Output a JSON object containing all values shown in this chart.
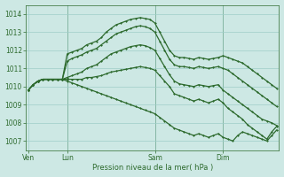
{
  "background_color": "#cde8e4",
  "grid_color": "#9ecdc8",
  "line_color": "#2d6a2d",
  "title": "Pression niveau de la mer( hPa )",
  "xlabel_ticks": [
    "Ven",
    "Lun",
    "Sam",
    "Dim"
  ],
  "xlabel_tick_positions": [
    0,
    8,
    26,
    40
  ],
  "total_points": 52,
  "ylim": [
    1006.5,
    1014.5
  ],
  "yticks": [
    1007,
    1008,
    1009,
    1010,
    1011,
    1012,
    1013,
    1014
  ],
  "lines": [
    {
      "x": [
        0,
        1,
        2,
        3,
        4,
        5,
        6,
        7,
        8,
        9,
        10,
        11,
        12,
        13,
        14,
        15,
        16,
        17,
        18,
        19,
        20,
        21,
        22,
        23,
        24,
        25,
        26,
        27,
        28,
        29,
        30,
        31,
        32,
        33,
        34,
        35,
        36,
        37,
        38,
        39,
        40,
        41,
        42,
        43,
        44,
        45,
        46,
        47,
        48,
        49,
        50,
        51
      ],
      "y": [
        1009.8,
        1010.1,
        1010.3,
        1010.4,
        1010.4,
        1010.4,
        1010.4,
        1010.4,
        1011.8,
        1011.9,
        1012.0,
        1012.1,
        1012.3,
        1012.4,
        1012.5,
        1012.7,
        1013.0,
        1013.2,
        1013.4,
        1013.5,
        1013.6,
        1013.7,
        1013.75,
        1013.8,
        1013.75,
        1013.7,
        1013.5,
        1013.0,
        1012.5,
        1012.0,
        1011.7,
        1011.6,
        1011.6,
        1011.55,
        1011.5,
        1011.6,
        1011.55,
        1011.5,
        1011.55,
        1011.6,
        1011.7,
        1011.6,
        1011.5,
        1011.4,
        1011.3,
        1011.1,
        1010.9,
        1010.7,
        1010.5,
        1010.3,
        1010.1,
        1009.9
      ]
    },
    {
      "x": [
        0,
        1,
        2,
        3,
        4,
        5,
        6,
        7,
        8,
        9,
        10,
        11,
        12,
        13,
        14,
        15,
        16,
        17,
        18,
        19,
        20,
        21,
        22,
        23,
        24,
        25,
        26,
        27,
        28,
        29,
        30,
        31,
        32,
        33,
        34,
        35,
        36,
        37,
        38,
        39,
        40,
        41,
        42,
        43,
        44,
        45,
        46,
        47,
        48,
        49,
        50,
        51
      ],
      "y": [
        1009.8,
        1010.1,
        1010.3,
        1010.4,
        1010.4,
        1010.4,
        1010.4,
        1010.4,
        1011.4,
        1011.55,
        1011.65,
        1011.75,
        1011.9,
        1012.0,
        1012.1,
        1012.3,
        1012.5,
        1012.7,
        1012.9,
        1013.0,
        1013.1,
        1013.2,
        1013.3,
        1013.35,
        1013.3,
        1013.2,
        1013.0,
        1012.5,
        1012.0,
        1011.5,
        1011.2,
        1011.1,
        1011.1,
        1011.05,
        1011.0,
        1011.1,
        1011.05,
        1011.0,
        1011.05,
        1011.1,
        1011.0,
        1010.9,
        1010.7,
        1010.5,
        1010.3,
        1010.1,
        1009.9,
        1009.7,
        1009.5,
        1009.3,
        1009.1,
        1008.9
      ]
    },
    {
      "x": [
        0,
        1,
        2,
        3,
        4,
        5,
        6,
        7,
        8,
        9,
        10,
        11,
        12,
        13,
        14,
        15,
        16,
        17,
        18,
        19,
        20,
        21,
        22,
        23,
        24,
        25,
        26,
        27,
        28,
        29,
        30,
        31,
        32,
        33,
        34,
        35,
        36,
        37,
        38,
        39,
        40,
        41,
        42,
        43,
        44,
        45,
        46,
        47,
        48,
        49,
        50,
        51
      ],
      "y": [
        1009.8,
        1010.1,
        1010.3,
        1010.4,
        1010.4,
        1010.4,
        1010.4,
        1010.4,
        1010.5,
        1010.6,
        1010.7,
        1010.8,
        1011.0,
        1011.1,
        1011.2,
        1011.4,
        1011.6,
        1011.8,
        1011.9,
        1012.0,
        1012.1,
        1012.2,
        1012.25,
        1012.3,
        1012.25,
        1012.15,
        1012.0,
        1011.55,
        1011.1,
        1010.65,
        1010.3,
        1010.15,
        1010.1,
        1010.05,
        1010.0,
        1010.1,
        1010.05,
        1010.0,
        1010.05,
        1010.1,
        1009.8,
        1009.6,
        1009.4,
        1009.2,
        1009.0,
        1008.8,
        1008.6,
        1008.4,
        1008.2,
        1008.1,
        1008.0,
        1007.85
      ]
    },
    {
      "x": [
        0,
        1,
        2,
        3,
        4,
        5,
        6,
        7,
        8,
        9,
        10,
        11,
        12,
        13,
        14,
        15,
        16,
        17,
        18,
        19,
        20,
        21,
        22,
        23,
        24,
        25,
        26,
        27,
        28,
        29,
        30,
        31,
        32,
        33,
        34,
        35,
        36,
        37,
        38,
        39,
        40,
        41,
        42,
        43,
        44,
        45,
        46,
        47,
        48,
        49,
        50,
        51
      ],
      "y": [
        1009.8,
        1010.1,
        1010.3,
        1010.4,
        1010.4,
        1010.4,
        1010.4,
        1010.4,
        1010.4,
        1010.4,
        1010.4,
        1010.4,
        1010.5,
        1010.5,
        1010.55,
        1010.6,
        1010.7,
        1010.8,
        1010.85,
        1010.9,
        1010.95,
        1011.0,
        1011.05,
        1011.1,
        1011.05,
        1011.0,
        1010.9,
        1010.6,
        1010.3,
        1010.0,
        1009.6,
        1009.5,
        1009.4,
        1009.3,
        1009.2,
        1009.3,
        1009.2,
        1009.1,
        1009.2,
        1009.3,
        1009.1,
        1008.8,
        1008.6,
        1008.4,
        1008.2,
        1007.9,
        1007.7,
        1007.5,
        1007.3,
        1007.1,
        1007.5,
        1007.8
      ]
    },
    {
      "x": [
        0,
        1,
        2,
        3,
        4,
        5,
        6,
        7,
        8,
        9,
        10,
        11,
        12,
        13,
        14,
        15,
        16,
        17,
        18,
        19,
        20,
        21,
        22,
        23,
        24,
        25,
        26,
        27,
        28,
        29,
        30,
        31,
        32,
        33,
        34,
        35,
        36,
        37,
        38,
        39,
        40,
        41,
        42,
        43,
        44,
        45,
        46,
        47,
        48,
        49,
        50,
        51
      ],
      "y": [
        1009.8,
        1010.1,
        1010.3,
        1010.4,
        1010.4,
        1010.4,
        1010.4,
        1010.4,
        1010.3,
        1010.2,
        1010.1,
        1010.0,
        1009.9,
        1009.8,
        1009.7,
        1009.6,
        1009.5,
        1009.4,
        1009.3,
        1009.2,
        1009.1,
        1009.0,
        1008.9,
        1008.8,
        1008.7,
        1008.6,
        1008.5,
        1008.3,
        1008.1,
        1007.9,
        1007.7,
        1007.6,
        1007.5,
        1007.4,
        1007.3,
        1007.4,
        1007.3,
        1007.2,
        1007.3,
        1007.4,
        1007.2,
        1007.1,
        1007.0,
        1007.3,
        1007.5,
        1007.4,
        1007.3,
        1007.2,
        1007.1,
        1007.0,
        1007.3,
        1007.6
      ]
    }
  ]
}
